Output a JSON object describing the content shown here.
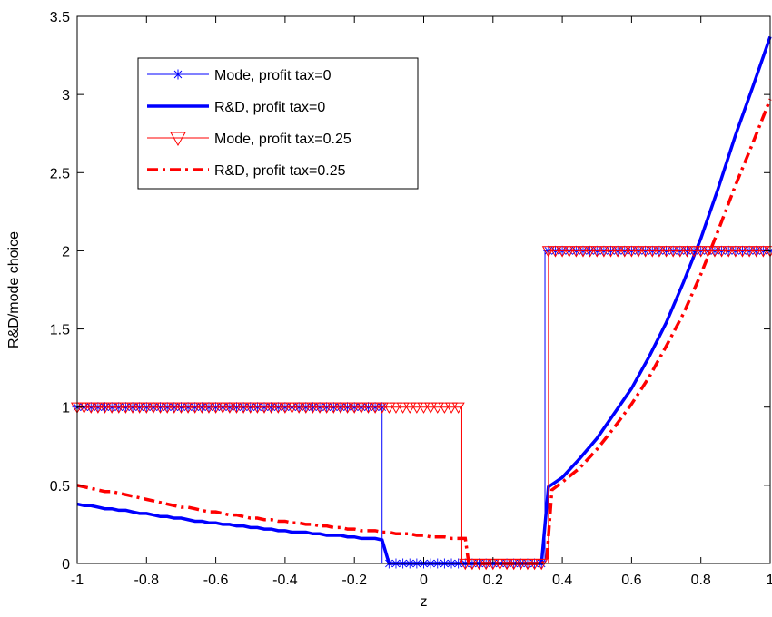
{
  "chart_data": {
    "type": "line",
    "title": "",
    "xlabel": "z",
    "ylabel": "R&D/mode choice",
    "xlim": [
      -1,
      1
    ],
    "ylim": [
      0,
      3.5
    ],
    "xticks": [
      -1,
      -0.8,
      -0.6,
      -0.4,
      -0.2,
      0,
      0.2,
      0.4,
      0.6,
      0.8,
      1
    ],
    "xtick_labels": [
      "-1",
      "-0.8",
      "-0.6",
      "-0.4",
      "-0.2",
      "0",
      "0.2",
      "0.4",
      "0.6",
      "0.8",
      "1"
    ],
    "yticks": [
      0,
      0.5,
      1,
      1.5,
      2,
      2.5,
      3,
      3.5
    ],
    "ytick_labels": [
      "0",
      "0.5",
      "1",
      "1.5",
      "2",
      "2.5",
      "3",
      "3.5"
    ],
    "grid": false,
    "legend_position": "top-left",
    "series": [
      {
        "name": "Mode, profit tax=0",
        "color": "#0000ff",
        "style": "thin-line-star-markers",
        "x": [
          -1,
          -0.12,
          -0.12,
          0.35,
          0.35,
          1
        ],
        "y": [
          1,
          1,
          0,
          0,
          2,
          2
        ]
      },
      {
        "name": "R&D, profit tax=0",
        "color": "#0000ff",
        "style": "thick-solid",
        "x": [
          -1,
          -0.98,
          -0.96,
          -0.94,
          -0.92,
          -0.9,
          -0.88,
          -0.86,
          -0.84,
          -0.82,
          -0.8,
          -0.78,
          -0.76,
          -0.74,
          -0.72,
          -0.7,
          -0.68,
          -0.66,
          -0.64,
          -0.62,
          -0.6,
          -0.58,
          -0.56,
          -0.54,
          -0.52,
          -0.5,
          -0.48,
          -0.46,
          -0.44,
          -0.42,
          -0.4,
          -0.38,
          -0.36,
          -0.34,
          -0.32,
          -0.3,
          -0.28,
          -0.26,
          -0.24,
          -0.22,
          -0.2,
          -0.18,
          -0.16,
          -0.14,
          -0.12,
          -0.1,
          0.34,
          0.36,
          0.38,
          0.4,
          0.45,
          0.5,
          0.55,
          0.6,
          0.65,
          0.7,
          0.75,
          0.8,
          0.85,
          0.9,
          0.95,
          1.0
        ],
        "y": [
          0.38,
          0.37,
          0.37,
          0.36,
          0.35,
          0.35,
          0.34,
          0.34,
          0.33,
          0.32,
          0.32,
          0.31,
          0.3,
          0.3,
          0.29,
          0.29,
          0.28,
          0.27,
          0.27,
          0.26,
          0.26,
          0.25,
          0.25,
          0.24,
          0.24,
          0.23,
          0.23,
          0.22,
          0.22,
          0.21,
          0.21,
          0.2,
          0.2,
          0.2,
          0.19,
          0.19,
          0.18,
          0.18,
          0.18,
          0.17,
          0.17,
          0.16,
          0.16,
          0.16,
          0.15,
          0.0,
          0.0,
          0.49,
          0.52,
          0.55,
          0.67,
          0.8,
          0.96,
          1.12,
          1.32,
          1.54,
          1.8,
          2.08,
          2.4,
          2.74,
          3.05,
          3.37
        ]
      },
      {
        "name": "Mode, profit tax=0.25",
        "color": "#ff0000",
        "style": "thin-line-triangle-markers",
        "x": [
          -1,
          0.11,
          0.11,
          0.36,
          0.36,
          1
        ],
        "y": [
          1,
          1,
          0,
          0,
          2,
          2
        ]
      },
      {
        "name": "R&D, profit tax=0.25",
        "color": "#ff0000",
        "style": "thick-dash-dot",
        "x": [
          -1,
          -0.98,
          -0.96,
          -0.94,
          -0.92,
          -0.9,
          -0.88,
          -0.86,
          -0.84,
          -0.82,
          -0.8,
          -0.78,
          -0.76,
          -0.74,
          -0.72,
          -0.7,
          -0.68,
          -0.66,
          -0.64,
          -0.62,
          -0.6,
          -0.58,
          -0.56,
          -0.54,
          -0.52,
          -0.5,
          -0.48,
          -0.46,
          -0.44,
          -0.42,
          -0.4,
          -0.38,
          -0.36,
          -0.34,
          -0.32,
          -0.3,
          -0.28,
          -0.26,
          -0.24,
          -0.22,
          -0.2,
          -0.18,
          -0.16,
          -0.14,
          -0.12,
          -0.1,
          -0.08,
          -0.06,
          -0.04,
          -0.02,
          0.0,
          0.02,
          0.04,
          0.06,
          0.08,
          0.1,
          0.12,
          0.13,
          0.34,
          0.355,
          0.37,
          0.4,
          0.45,
          0.5,
          0.55,
          0.6,
          0.65,
          0.7,
          0.75,
          0.8,
          0.85,
          0.9,
          0.95,
          1.0
        ],
        "y": [
          0.5,
          0.49,
          0.48,
          0.47,
          0.46,
          0.46,
          0.45,
          0.44,
          0.43,
          0.42,
          0.41,
          0.4,
          0.39,
          0.38,
          0.37,
          0.36,
          0.36,
          0.35,
          0.34,
          0.33,
          0.33,
          0.32,
          0.31,
          0.31,
          0.3,
          0.29,
          0.29,
          0.28,
          0.28,
          0.27,
          0.27,
          0.26,
          0.26,
          0.25,
          0.25,
          0.24,
          0.24,
          0.23,
          0.23,
          0.22,
          0.22,
          0.21,
          0.21,
          0.21,
          0.2,
          0.2,
          0.19,
          0.19,
          0.19,
          0.18,
          0.18,
          0.17,
          0.17,
          0.17,
          0.16,
          0.16,
          0.16,
          0.0,
          0.0,
          0.02,
          0.47,
          0.52,
          0.61,
          0.73,
          0.87,
          1.02,
          1.19,
          1.39,
          1.6,
          1.85,
          2.13,
          2.42,
          2.69,
          2.97
        ]
      }
    ]
  }
}
